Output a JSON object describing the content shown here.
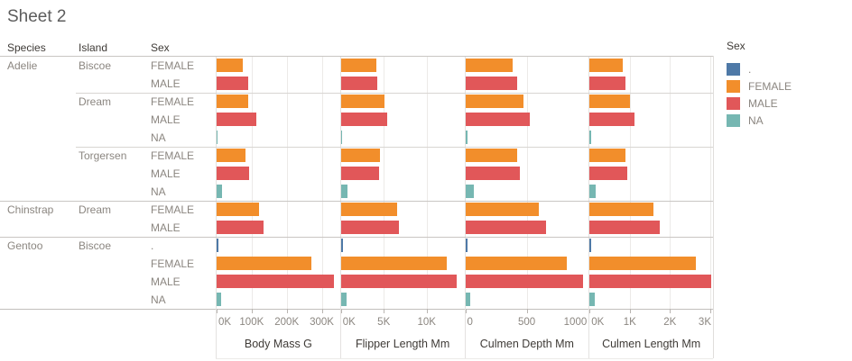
{
  "title": "Sheet 2",
  "row_headers": {
    "species": "Species",
    "island": "Island",
    "sex": "Sex"
  },
  "legend": {
    "title": "Sex",
    "items": [
      {
        "label": ".",
        "color": "#4e79a7"
      },
      {
        "label": "FEMALE",
        "color": "#f28e2b"
      },
      {
        "label": "MALE",
        "color": "#e15759"
      },
      {
        "label": "NA",
        "color": "#76b7b2"
      }
    ]
  },
  "sex_colors": {
    ".": "#4e79a7",
    "FEMALE": "#f28e2b",
    "MALE": "#e15759",
    "NA": "#76b7b2"
  },
  "chart_data": {
    "type": "bar",
    "orientation": "horizontal",
    "grid": true,
    "legend_position": "top-right",
    "measures": [
      {
        "title": "Body Mass G",
        "max": 352000,
        "ticks": [
          {
            "label": "0K",
            "value": 0
          },
          {
            "label": "100K",
            "value": 100000
          },
          {
            "label": "200K",
            "value": 200000
          },
          {
            "label": "300K",
            "value": 300000
          }
        ]
      },
      {
        "title": "Flipper Length Mm",
        "max": 14400,
        "ticks": [
          {
            "label": "0K",
            "value": 0
          },
          {
            "label": "5K",
            "value": 5000
          },
          {
            "label": "10K",
            "value": 10000
          }
        ]
      },
      {
        "title": "Culmen Depth Mm",
        "max": 1005,
        "ticks": [
          {
            "label": "0",
            "value": 0
          },
          {
            "label": "500",
            "value": 500
          },
          {
            "label": "1000",
            "value": 1000
          }
        ]
      },
      {
        "title": "Culmen Length Mm",
        "max": 3070,
        "ticks": [
          {
            "label": "0K",
            "value": 0
          },
          {
            "label": "1K",
            "value": 1000
          },
          {
            "label": "2K",
            "value": 2000
          },
          {
            "label": "3K",
            "value": 3000
          }
        ]
      }
    ],
    "rows": [
      {
        "species": "Adelie",
        "island": "Biscoe",
        "sex": "FEMALE",
        "values": [
          74125,
          4118,
          389,
          822
        ]
      },
      {
        "species": "Adelie",
        "island": "Biscoe",
        "sex": "MALE",
        "values": [
          89100,
          4189,
          419,
          893
        ]
      },
      {
        "species": "Adelie",
        "island": "Dream",
        "sex": "FEMALE",
        "values": [
          90300,
          5073,
          476,
          997
        ]
      },
      {
        "species": "Adelie",
        "island": "Dream",
        "sex": "MALE",
        "values": [
          113275,
          5373,
          528,
          1122
        ]
      },
      {
        "species": "Adelie",
        "island": "Dream",
        "sex": "NA",
        "values": [
          2975,
          179,
          19,
          38
        ]
      },
      {
        "species": "Adelie",
        "island": "Torgersen",
        "sex": "FEMALE",
        "values": [
          81500,
          4519,
          421,
          901
        ]
      },
      {
        "species": "Adelie",
        "island": "Torgersen",
        "sex": "MALE",
        "values": [
          92800,
          4482,
          446,
          934
        ]
      },
      {
        "species": "Adelie",
        "island": "Torgersen",
        "sex": "NA",
        "values": [
          14725,
          749,
          73,
          152
        ]
      },
      {
        "species": "Chinstrap",
        "island": "Dream",
        "sex": "FEMALE",
        "values": [
          119925,
          6519,
          598,
          1583
        ]
      },
      {
        "species": "Chinstrap",
        "island": "Dream",
        "sex": "MALE",
        "values": [
          133925,
          6797,
          655,
          1737
        ]
      },
      {
        "species": "Gentoo",
        "island": "Biscoe",
        "sex": ".",
        "values": [
          4875,
          217,
          16,
          45
        ]
      },
      {
        "species": "Gentoo",
        "island": "Biscoe",
        "sex": "FEMALE",
        "values": [
          271425,
          12337,
          826,
          2642
        ]
      },
      {
        "species": "Gentoo",
        "island": "Biscoe",
        "sex": "MALE",
        "values": [
          334575,
          13514,
          959,
          3018
        ]
      },
      {
        "species": "Gentoo",
        "island": "Biscoe",
        "sex": "NA",
        "values": [
          13475,
          646,
          43,
          138
        ]
      }
    ]
  }
}
